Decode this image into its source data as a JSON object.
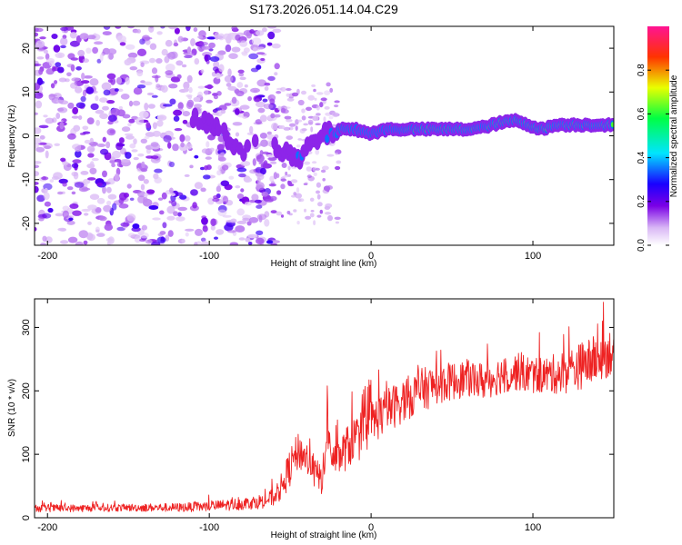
{
  "title": "S173.2026.051.14.04.C29",
  "chart_data": [
    {
      "type": "heatmap",
      "name": "spectrogram",
      "xlabel": "Height of straight line (km)",
      "ylabel": "Frequency (Hz)",
      "xlim": [
        -208,
        150
      ],
      "ylim": [
        -25,
        25
      ],
      "xticks": [
        -200,
        -100,
        0,
        100
      ],
      "xtick_labels": [
        "-200",
        "-100",
        "0",
        "100"
      ],
      "yticks": [
        -20,
        -10,
        0,
        10,
        20
      ],
      "ytick_labels": [
        "-20",
        "-10",
        "0",
        "10",
        "20"
      ],
      "noise_region_km": [
        -208,
        -58
      ],
      "transition_region_km": [
        -58,
        -20
      ],
      "signal_track": [
        {
          "x": -110,
          "f": 3.5,
          "amp": 0.2
        },
        {
          "x": -100,
          "f": 3.0,
          "amp": 0.25
        },
        {
          "x": -93,
          "f": 1.0,
          "amp": 0.15
        },
        {
          "x": -85,
          "f": -2.0,
          "amp": 0.2
        },
        {
          "x": -78,
          "f": -3.5,
          "amp": 0.15
        },
        {
          "x": -65,
          "f": 2.0,
          "amp": 0.1
        },
        {
          "x": -58,
          "f": -2.5,
          "amp": 0.2
        },
        {
          "x": -50,
          "f": -4.5,
          "amp": 0.25
        },
        {
          "x": -45,
          "f": -6.0,
          "amp": 0.3
        },
        {
          "x": -40,
          "f": -3.0,
          "amp": 0.3
        },
        {
          "x": -33,
          "f": -1.0,
          "amp": 0.3
        },
        {
          "x": -30,
          "f": 0.0,
          "amp": 0.3
        },
        {
          "x": -20,
          "f": 1.5,
          "amp": 0.4
        },
        {
          "x": -10,
          "f": 1.5,
          "amp": 0.45
        },
        {
          "x": 0,
          "f": 0.5,
          "amp": 0.45
        },
        {
          "x": 10,
          "f": 1.5,
          "amp": 0.5
        },
        {
          "x": 20,
          "f": 1.5,
          "amp": 0.6
        },
        {
          "x": 40,
          "f": 1.5,
          "amp": 0.8
        },
        {
          "x": 60,
          "f": 1.5,
          "amp": 0.8
        },
        {
          "x": 70,
          "f": 2.0,
          "amp": 0.55
        },
        {
          "x": 80,
          "f": 3.0,
          "amp": 0.9
        },
        {
          "x": 90,
          "f": 3.5,
          "amp": 0.9
        },
        {
          "x": 97,
          "f": 2.5,
          "amp": 0.9
        },
        {
          "x": 105,
          "f": 1.5,
          "amp": 0.8
        },
        {
          "x": 115,
          "f": 2.5,
          "amp": 0.7
        },
        {
          "x": 130,
          "f": 2.5,
          "amp": 0.9
        },
        {
          "x": 150,
          "f": 2.5,
          "amp": 0.7
        }
      ],
      "colorbar": {
        "label": "Normalized spectral amplitude",
        "range": [
          0.0,
          1.0
        ],
        "ticks": [
          0.0,
          0.2,
          0.4,
          0.6,
          0.8
        ],
        "tick_labels": [
          "0.0",
          "0.2",
          "0.4",
          "0.6",
          "0.8"
        ]
      }
    },
    {
      "type": "line",
      "name": "snr",
      "xlabel": "Height of straight line (km)",
      "ylabel": "SNR (10 * v/v)",
      "xlim": [
        -208,
        150
      ],
      "ylim": [
        0,
        345
      ],
      "xticks": [
        -200,
        -100,
        0,
        100
      ],
      "xtick_labels": [
        "-200",
        "-100",
        "0",
        "100"
      ],
      "yticks": [
        0,
        100,
        200,
        300
      ],
      "ytick_labels": [
        "0",
        "100",
        "200",
        "300"
      ],
      "color": "#ee2222",
      "series": [
        {
          "name": "SNR",
          "x": [
            -208,
            -180,
            -150,
            -120,
            -100,
            -90,
            -80,
            -70,
            -65,
            -60,
            -55,
            -50,
            -45,
            -40,
            -35,
            -30,
            -27,
            -25,
            -22,
            -20,
            -15,
            -10,
            -5,
            0,
            10,
            20,
            30,
            40,
            50,
            60,
            70,
            80,
            90,
            100,
            110,
            120,
            130,
            140,
            150
          ],
          "base": [
            15,
            15,
            16,
            16,
            18,
            20,
            22,
            25,
            28,
            32,
            50,
            80,
            105,
            95,
            70,
            60,
            130,
            100,
            90,
            95,
            110,
            125,
            130,
            150,
            170,
            185,
            200,
            210,
            215,
            220,
            215,
            225,
            230,
            225,
            225,
            230,
            240,
            250,
            265
          ],
          "amp": [
            12,
            12,
            12,
            14,
            16,
            18,
            20,
            22,
            25,
            28,
            45,
            60,
            60,
            55,
            50,
            50,
            120,
            60,
            50,
            60,
            70,
            75,
            80,
            75,
            70,
            70,
            70,
            65,
            60,
            60,
            60,
            60,
            60,
            60,
            60,
            70,
            75,
            80,
            75
          ]
        }
      ]
    }
  ]
}
